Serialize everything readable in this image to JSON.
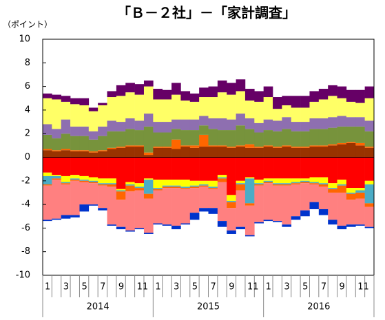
{
  "chart_data": {
    "type": "bar",
    "stacked": true,
    "title": "「Ｂ－２社」－「家計調査」",
    "y_label": "（ポイント）",
    "ylim": [
      -10,
      10
    ],
    "yticks": [
      10,
      8,
      6,
      4,
      2,
      0,
      -2,
      -4,
      -6,
      -8,
      -10
    ],
    "grid": false,
    "categories": [
      "1",
      null,
      "3",
      null,
      "5",
      null,
      "7",
      null,
      "9",
      null,
      "11",
      null,
      "1",
      null,
      "3",
      null,
      "5",
      null,
      "7",
      null,
      "9",
      null,
      "11",
      null,
      "1",
      null,
      "3",
      null,
      "5",
      null,
      "7",
      null,
      "9",
      null,
      "11",
      null
    ],
    "years": [
      "2014",
      "2015",
      "2016"
    ],
    "series": [
      {
        "color": "#993300",
        "values": [
          0.6,
          0.5,
          0.6,
          0.5,
          0.5,
          0.4,
          0.5,
          0.7,
          0.8,
          0.9,
          0.9,
          0.2,
          0.8,
          0.8,
          0.7,
          0.9,
          0.8,
          0.9,
          0.9,
          0.9,
          0.8,
          0.9,
          0.8,
          0.8,
          0.9,
          0.8,
          0.9,
          0.8,
          0.8,
          0.9,
          0.9,
          1.0,
          1.1,
          1.2,
          1.0,
          0.8
        ]
      },
      {
        "color": "#ff6600",
        "values": [
          0.1,
          0.1,
          0.1,
          0.1,
          0.1,
          0.1,
          0.1,
          0.1,
          0.1,
          0.1,
          0.1,
          0.2,
          0.1,
          0.1,
          0.8,
          0.1,
          0.2,
          1.0,
          0.1,
          0.1,
          0.1,
          0.1,
          0.3,
          0.1,
          0.1,
          0.1,
          0.1,
          0.1,
          0.1,
          0.1,
          0.1,
          0.1,
          0.1,
          0.1,
          0.2,
          0.1
        ]
      },
      {
        "color": "#77933c",
        "values": [
          1.2,
          1.0,
          1.3,
          1.2,
          1.2,
          1.0,
          1.2,
          1.4,
          1.3,
          1.4,
          1.3,
          2.2,
          1.2,
          1.2,
          0.9,
          1.3,
          1.3,
          0.8,
          1.4,
          1.3,
          1.4,
          1.7,
          1.3,
          1.2,
          1.3,
          1.3,
          1.4,
          1.3,
          1.3,
          1.4,
          1.4,
          1.4,
          1.4,
          1.3,
          1.4,
          1.3
        ]
      },
      {
        "color": "#8e6fb0",
        "values": [
          0.9,
          0.8,
          1.2,
          0.8,
          0.8,
          0.7,
          0.8,
          0.9,
          0.8,
          0.9,
          0.8,
          1.1,
          0.9,
          0.9,
          0.8,
          0.9,
          0.9,
          0.8,
          0.9,
          1.0,
          0.9,
          1.0,
          0.9,
          0.8,
          0.9,
          0.9,
          1.0,
          0.8,
          0.8,
          0.9,
          0.9,
          0.9,
          0.9,
          0.8,
          0.8,
          0.9
        ]
      },
      {
        "color": "#ffff66",
        "values": [
          2.2,
          2.5,
          1.5,
          1.9,
          1.8,
          1.7,
          1.8,
          2.0,
          2.2,
          2.2,
          2.2,
          2.3,
          1.9,
          1.9,
          2.1,
          1.6,
          1.5,
          1.6,
          1.8,
          2.2,
          2.1,
          1.9,
          1.5,
          1.8,
          1.9,
          1.0,
          1.0,
          1.2,
          1.2,
          1.4,
          1.6,
          1.8,
          1.5,
          1.3,
          1.2,
          1.9
        ]
      },
      {
        "color": "#660066",
        "values": [
          0.4,
          0.4,
          0.5,
          0.5,
          0.6,
          0.3,
          0.2,
          0.5,
          0.9,
          0.8,
          0.9,
          0.5,
          0.9,
          0.8,
          1.0,
          0.8,
          0.7,
          0.8,
          0.9,
          1.0,
          1.0,
          1.0,
          1.0,
          0.9,
          0.9,
          1.0,
          0.8,
          1.0,
          1.0,
          0.9,
          0.9,
          0.9,
          1.0,
          1.0,
          1.1,
          1.0
        ]
      },
      {
        "color": "#ff0000",
        "values": [
          -1.3,
          -1.5,
          -1.6,
          -1.5,
          -1.6,
          -1.7,
          -1.8,
          -1.8,
          -2.7,
          -2.1,
          -2.2,
          -1.8,
          -1.9,
          -1.9,
          -1.9,
          -1.9,
          -2.0,
          -2.0,
          -2.0,
          -1.5,
          -3.2,
          -2.0,
          -1.7,
          -1.9,
          -1.8,
          -1.8,
          -1.8,
          -1.8,
          -1.8,
          -1.7,
          -1.7,
          -2.2,
          -1.9,
          -2.6,
          -2.6,
          -2.0
        ]
      },
      {
        "color": "#ffff00",
        "values": [
          -0.3,
          -0.1,
          -0.5,
          -0.3,
          -0.3,
          -0.3,
          -0.4,
          -0.4,
          -0.1,
          -0.2,
          -0.3,
          -0.1,
          -0.7,
          -0.5,
          -0.5,
          -0.6,
          -0.4,
          -0.3,
          -0.5,
          -0.2,
          -0.5,
          -0.2,
          -0.1,
          -0.3,
          -0.2,
          -0.4,
          -0.4,
          -0.3,
          -0.2,
          -0.4,
          -0.5,
          -0.4,
          -0.4,
          -0.4,
          -0.2,
          -0.3
        ]
      },
      {
        "color": "#4bacc6",
        "values": [
          -0.7,
          -0.2,
          -0.1,
          -0.1,
          -0.1,
          -0.1,
          -0.1,
          -0.1,
          -0.1,
          -0.1,
          -0.1,
          -1.2,
          -0.1,
          -0.1,
          -0.1,
          -0.1,
          -0.1,
          -0.1,
          -0.1,
          -0.1,
          -0.1,
          -0.1,
          -2.1,
          -0.1,
          -0.1,
          -0.1,
          -0.1,
          -0.1,
          -0.1,
          -0.1,
          -0.1,
          -0.1,
          -0.1,
          -0.1,
          -0.2,
          -1.6
        ]
      },
      {
        "color": "#ff6600",
        "values": [
          -0.1,
          -0.1,
          -0.1,
          -0.1,
          -0.1,
          -0.1,
          -0.1,
          -0.2,
          -0.7,
          -0.5,
          -0.2,
          -0.4,
          -0.1,
          -0.1,
          -0.1,
          -0.1,
          -0.1,
          -0.1,
          -0.1,
          -0.3,
          -0.5,
          -0.5,
          -0.2,
          -0.1,
          -0.1,
          -0.1,
          -0.1,
          -0.1,
          -0.1,
          -0.1,
          -0.2,
          -0.3,
          -0.6,
          -0.5,
          -0.5,
          -0.3
        ]
      },
      {
        "color": "#ff8080",
        "values": [
          -2.9,
          -3.3,
          -2.6,
          -2.9,
          -1.9,
          -1.8,
          -1.9,
          -3.2,
          -2.3,
          -3.3,
          -3.2,
          -2.9,
          -2.8,
          -3.1,
          -3.2,
          -2.9,
          -2.1,
          -1.8,
          -1.6,
          -3.3,
          -1.9,
          -3.1,
          -2.5,
          -3.1,
          -3.1,
          -3.0,
          -3.3,
          -2.7,
          -2.3,
          -1.5,
          -1.9,
          -2.3,
          -2.8,
          -2.1,
          -2.2,
          -1.7
        ]
      },
      {
        "color": "#0033cc",
        "values": [
          -0.1,
          -0.1,
          -0.3,
          -0.2,
          -0.6,
          -0.1,
          -0.2,
          -0.1,
          -0.2,
          -0.1,
          -0.1,
          -0.1,
          -0.1,
          -0.1,
          -0.3,
          -0.1,
          -0.6,
          -0.3,
          -0.5,
          -0.5,
          -0.3,
          -0.2,
          -0.1,
          -0.1,
          -0.1,
          -0.1,
          -0.2,
          -0.3,
          -0.5,
          -0.6,
          -0.5,
          -0.4,
          -0.3,
          -0.2,
          -0.1,
          -0.1
        ]
      }
    ]
  }
}
